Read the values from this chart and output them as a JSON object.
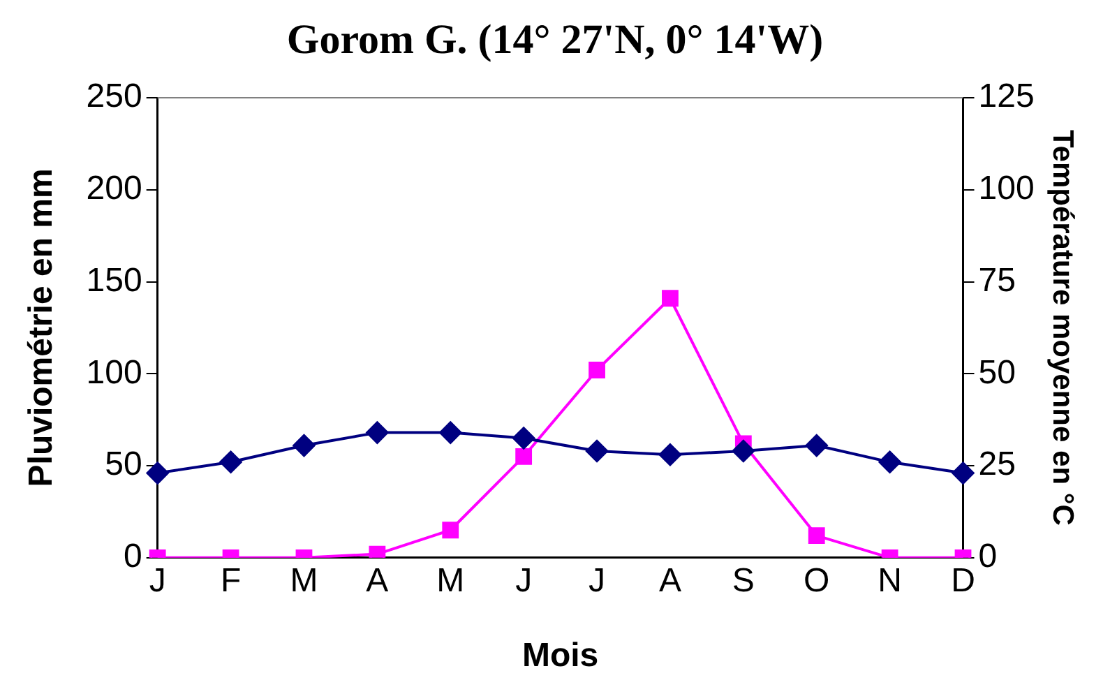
{
  "chart_data": {
    "type": "line",
    "title": "Gorom G. (14° 27'N, 0° 14'W)",
    "xlabel": "Mois",
    "ylabel": "Pluviométrie en mm",
    "y2label": "Température moyenne en °C",
    "categories": [
      "J",
      "F",
      "M",
      "A",
      "M",
      "J",
      "J",
      "A",
      "S",
      "O",
      "N",
      "D"
    ],
    "series": [
      {
        "color": "#000080",
        "marker": "diamond",
        "axis": "y2",
        "values": [
          23,
          26,
          30.5,
          34,
          34,
          32.5,
          29,
          28,
          29,
          30.5,
          26,
          23
        ]
      },
      {
        "color": "#ff00ff",
        "marker": "square",
        "values": [
          0,
          0,
          0,
          2,
          15,
          55,
          102,
          141,
          62,
          12,
          0,
          0
        ]
      }
    ],
    "ylim": [
      0,
      250
    ],
    "yticks": [
      0,
      50,
      100,
      150,
      200,
      250
    ],
    "y2lim": [
      0,
      125
    ],
    "y2ticks": [
      0,
      25,
      50,
      75,
      100,
      125
    ],
    "grid": false,
    "legend": false,
    "line_style": "solid"
  }
}
